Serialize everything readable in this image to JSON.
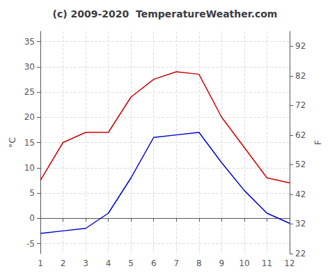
{
  "chart_data": {
    "type": "line",
    "title": "(c) 2009-2020  TemperatureWeather.com",
    "ylabel": "°C",
    "y2label": "F",
    "x": [
      1,
      2,
      3,
      4,
      5,
      6,
      7,
      8,
      9,
      10,
      11,
      12
    ],
    "series": [
      {
        "color": "#cc0000",
        "values": [
          7.5,
          15.0,
          17.0,
          17.0,
          24.0,
          27.5,
          29.0,
          28.5,
          20.0,
          14.0,
          8.0,
          7.0
        ]
      },
      {
        "color": "#0000cc",
        "values": [
          -3.0,
          -2.5,
          -2.0,
          1.0,
          8.0,
          16.0,
          16.5,
          17.0,
          11.0,
          5.5,
          1.0,
          -1.0
        ]
      }
    ],
    "xlim": [
      1,
      12
    ],
    "xticks": [
      1,
      2,
      3,
      4,
      5,
      6,
      7,
      8,
      9,
      10,
      11,
      12
    ],
    "ylim": [
      -7,
      37
    ],
    "yticks": [
      -5,
      0,
      5,
      10,
      15,
      20,
      25,
      30,
      35
    ],
    "y2lim": [
      22,
      97
    ],
    "y2ticks": [
      22,
      32,
      42,
      52,
      62,
      72,
      82,
      92
    ],
    "grid": true
  }
}
